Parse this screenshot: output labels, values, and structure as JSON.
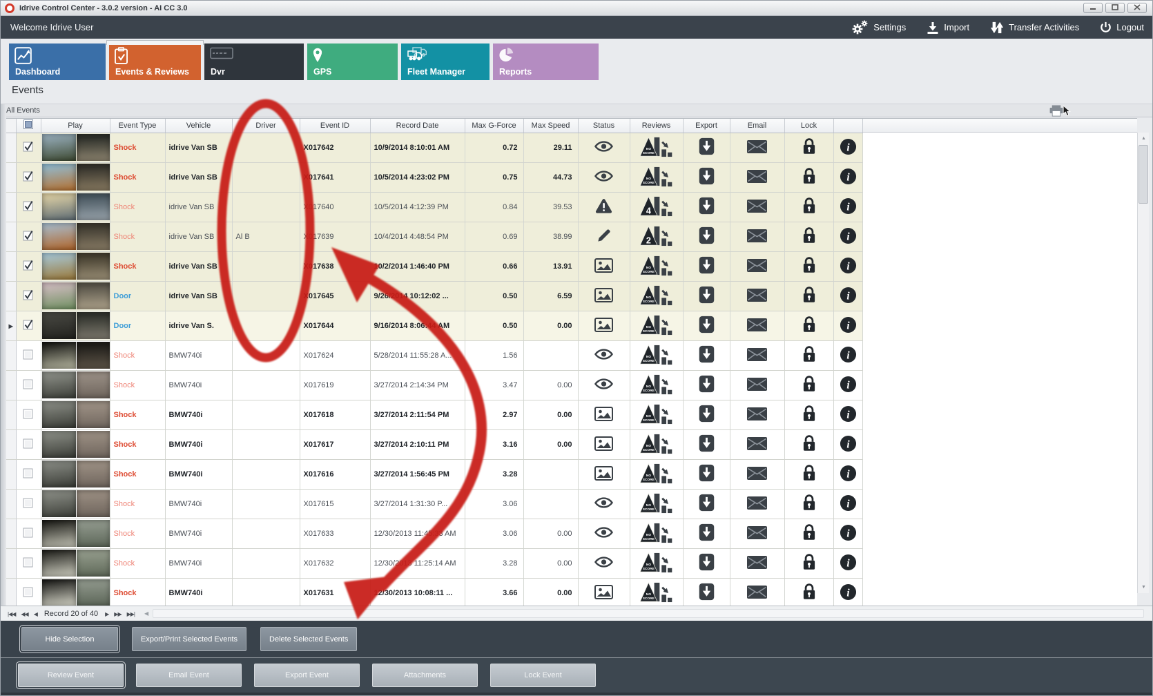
{
  "window": {
    "title": "Idrive Control Center - 3.0.2 version - AI CC 3.0"
  },
  "header": {
    "welcome": "Welcome Idrive User",
    "actions": [
      {
        "label": "Settings",
        "icon": "gears-icon"
      },
      {
        "label": "Import",
        "icon": "import-icon"
      },
      {
        "label": "Transfer Activities",
        "icon": "transfer-arrows-icon"
      },
      {
        "label": "Logout",
        "icon": "power-icon"
      }
    ]
  },
  "tabs": [
    {
      "label": "Dashboard",
      "icon": "line-chart-icon",
      "color": "#3a6fa8",
      "active": false
    },
    {
      "label": "Events & Reviews",
      "icon": "clipboard-check-icon",
      "color": "#d2622f",
      "active": true
    },
    {
      "label": "Dvr",
      "icon": "dvr-badge-icon",
      "color": "#2f353c",
      "active": false
    },
    {
      "label": "GPS",
      "icon": "map-pin-icon",
      "color": "#3fac7f",
      "active": false
    },
    {
      "label": "Fleet Manager",
      "icon": "trucks-icon",
      "color": "#1391a4",
      "active": false
    },
    {
      "label": "Reports",
      "icon": "pie-chart-icon",
      "color": "#b48cc1",
      "active": false
    }
  ],
  "page": {
    "heading": "Events",
    "section_label": "All Events"
  },
  "palette": {
    "shock_bold": "#dd4a31",
    "shock_normal": "#ee8375",
    "door": "#3f9ed8",
    "selected_row": "#efeeda",
    "current_row": "#f6f5e6",
    "icon_dark": "#3a4046",
    "annotation_red": "#c81e14"
  },
  "table": {
    "columns": [
      "",
      "Play",
      "Event Type",
      "Vehicle",
      "Driver",
      "Event ID",
      "Record Date",
      "Max G-Force",
      "Max Speed",
      "Status",
      "Reviews",
      "Export",
      "Email",
      "Lock",
      ""
    ],
    "rows": [
      {
        "checked": true,
        "current": false,
        "bold": true,
        "event_type": "Shock",
        "vehicle": "idrive Van SB",
        "driver": "",
        "event_id": "X017642",
        "record_date": "10/9/2014 8:10:01 AM",
        "max_g": "0.72",
        "max_speed": "29.11",
        "status": "eye-icon",
        "review": "NO SCORE",
        "thumb": [
          "#9db4c4",
          "#3e4a32",
          "#2e302a",
          "#8f8671"
        ]
      },
      {
        "checked": true,
        "current": false,
        "bold": true,
        "event_type": "Shock",
        "vehicle": "idrive Van SB",
        "driver": "",
        "event_id": "X017641",
        "record_date": "10/5/2014 4:23:02 PM",
        "max_g": "0.75",
        "max_speed": "44.73",
        "status": "eye-icon",
        "review": "NO SCORE",
        "thumb": [
          "#8fc0dc",
          "#b5702f",
          "#35332c",
          "#8a7c62"
        ]
      },
      {
        "checked": true,
        "current": false,
        "bold": false,
        "event_type": "Shock",
        "vehicle": "idrive Van SB",
        "driver": "",
        "event_id": "X017640",
        "record_date": "10/5/2014 4:12:39 PM",
        "max_g": "0.84",
        "max_speed": "39.53",
        "status": "warning-icon",
        "review": "4",
        "thumb": [
          "#e8d8a8",
          "#5d6b74",
          "#4a5861",
          "#9aa5ad"
        ]
      },
      {
        "checked": true,
        "current": false,
        "bold": false,
        "event_type": "Shock",
        "vehicle": "idrive Van SB",
        "driver": "Al B",
        "event_id": "X017639",
        "record_date": "10/4/2014 4:48:54 PM",
        "max_g": "0.69",
        "max_speed": "38.99",
        "status": "pencil-icon",
        "review": "2",
        "thumb": [
          "#a8c0d4",
          "#b06428",
          "#3e3a30",
          "#8a7d66"
        ]
      },
      {
        "checked": true,
        "current": false,
        "bold": true,
        "event_type": "Shock",
        "vehicle": "idrive Van SB",
        "driver": "",
        "event_id": "X017638",
        "record_date": "10/2/2014 1:46:40 PM",
        "max_g": "0.66",
        "max_speed": "13.91",
        "status": "image-icon",
        "review": "NO SCORE",
        "thumb": [
          "#a8cce0",
          "#9a7838",
          "#453f30",
          "#9b8f76"
        ]
      },
      {
        "checked": true,
        "current": false,
        "bold": true,
        "event_type": "Door",
        "vehicle": "idrive Van SB",
        "driver": "",
        "event_id": "X017645",
        "record_date": "9/26/2014 10:12:02 ...",
        "max_g": "0.50",
        "max_speed": "6.59",
        "status": "image-icon",
        "review": "NO SCORE",
        "thumb": [
          "#d8c0c8",
          "#6f8f60",
          "#59554a",
          "#b0a48c"
        ]
      },
      {
        "checked": true,
        "current": true,
        "bold": true,
        "event_type": "Door",
        "vehicle": "idrive Van S.",
        "driver": "",
        "event_id": "X017644",
        "record_date": "9/16/2014 8:06:44 AM",
        "max_g": "0.50",
        "max_speed": "0.00",
        "status": "image-icon",
        "review": "NO SCORE",
        "thumb": [
          "#4a4a44",
          "#22221e",
          "#32342e",
          "#7e7a6e"
        ]
      },
      {
        "checked": false,
        "current": false,
        "bold": false,
        "event_type": "Shock",
        "vehicle": "BMW740i",
        "driver": "",
        "event_id": "X017624",
        "record_date": "5/28/2014 11:55:28 A...",
        "max_g": "1.56",
        "max_speed": "",
        "status": "eye-icon",
        "review": "NO SCORE",
        "thumb": [
          "#0e0e0c",
          "#b8b8a2",
          "#201e1a",
          "#5e5548"
        ]
      },
      {
        "checked": false,
        "current": false,
        "bold": false,
        "event_type": "Shock",
        "vehicle": "BMW740i",
        "driver": "",
        "event_id": "X017619",
        "record_date": "3/27/2014 2:14:34 PM",
        "max_g": "3.47",
        "max_speed": "0.00",
        "status": "eye-icon",
        "review": "NO SCORE",
        "thumb": [
          "#93968e",
          "#3b3d37",
          "#968c82",
          "#6e645c"
        ]
      },
      {
        "checked": false,
        "current": false,
        "bold": true,
        "event_type": "Shock",
        "vehicle": "BMW740i",
        "driver": "",
        "event_id": "X017618",
        "record_date": "3/27/2014 2:11:54 PM",
        "max_g": "2.97",
        "max_speed": "0.00",
        "status": "image-icon",
        "review": "NO SCORE",
        "thumb": [
          "#8f928a",
          "#393b35",
          "#9a8e82",
          "#70665e"
        ]
      },
      {
        "checked": false,
        "current": false,
        "bold": true,
        "event_type": "Shock",
        "vehicle": "BMW740i",
        "driver": "",
        "event_id": "X017617",
        "record_date": "3/27/2014 2:10:11 PM",
        "max_g": "3.16",
        "max_speed": "0.00",
        "status": "image-icon",
        "review": "NO SCORE",
        "thumb": [
          "#90938b",
          "#3a3c36",
          "#988c80",
          "#6f655d"
        ]
      },
      {
        "checked": false,
        "current": false,
        "bold": true,
        "event_type": "Shock",
        "vehicle": "BMW740i",
        "driver": "",
        "event_id": "X017616",
        "record_date": "3/27/2014 1:56:45 PM",
        "max_g": "3.28",
        "max_speed": "",
        "status": "image-icon",
        "review": "NO SCORE",
        "thumb": [
          "#8e918a",
          "#383a34",
          "#998d81",
          "#6e645c"
        ]
      },
      {
        "checked": false,
        "current": false,
        "bold": false,
        "event_type": "Shock",
        "vehicle": "BMW740i",
        "driver": "",
        "event_id": "X017615",
        "record_date": "3/27/2014 1:31:30 P...",
        "max_g": "3.06",
        "max_speed": "",
        "status": "eye-icon",
        "review": "NO SCORE",
        "thumb": [
          "#91948c",
          "#3b3d37",
          "#978b7f",
          "#6d635b"
        ]
      },
      {
        "checked": false,
        "current": false,
        "bold": false,
        "event_type": "Shock",
        "vehicle": "BMW740i",
        "driver": "",
        "event_id": "X017633",
        "record_date": "12/30/2013 11:45:33 AM",
        "max_g": "3.06",
        "max_speed": "0.00",
        "status": "eye-icon",
        "review": "NO SCORE",
        "thumb": [
          "#141410",
          "#c4c4b6",
          "#8e968a",
          "#5c6658"
        ]
      },
      {
        "checked": false,
        "current": false,
        "bold": false,
        "event_type": "Shock",
        "vehicle": "BMW740i",
        "driver": "",
        "event_id": "X017632",
        "record_date": "12/30/2013 11:25:14 AM",
        "max_g": "3.28",
        "max_speed": "0.00",
        "status": "eye-icon",
        "review": "NO SCORE",
        "thumb": [
          "#181814",
          "#d0d0c2",
          "#909888",
          "#5e6858"
        ]
      },
      {
        "checked": false,
        "current": false,
        "bold": true,
        "event_type": "Shock",
        "vehicle": "BMW740i",
        "driver": "",
        "event_id": "X017631",
        "record_date": "12/30/2013 10:08:11 ...",
        "max_g": "3.66",
        "max_speed": "0.00",
        "status": "image-icon",
        "review": "NO SCORE",
        "thumb": [
          "#121210",
          "#d8d8ca",
          "#8c9488",
          "#5a6456"
        ]
      }
    ]
  },
  "pagination": {
    "label": "Record 20 of 40",
    "nav_left": [
      "|◀◀",
      "◀◀",
      "◀"
    ],
    "nav_right": [
      "▶",
      "▶▶",
      "▶▶|"
    ]
  },
  "selection_bar": {
    "buttons": [
      {
        "label": "Hide Selection",
        "focused": true
      },
      {
        "label": "Export/Print Selected Events",
        "focused": false
      },
      {
        "label": "Delete Selected  Events",
        "focused": false
      }
    ]
  },
  "event_bar": {
    "buttons": [
      {
        "label": "Review Event",
        "focused": true
      },
      {
        "label": "Email Event",
        "focused": false
      },
      {
        "label": "Export Event",
        "focused": false
      },
      {
        "label": "Attachments",
        "focused": false
      },
      {
        "label": "Lock Event",
        "focused": false
      }
    ]
  }
}
